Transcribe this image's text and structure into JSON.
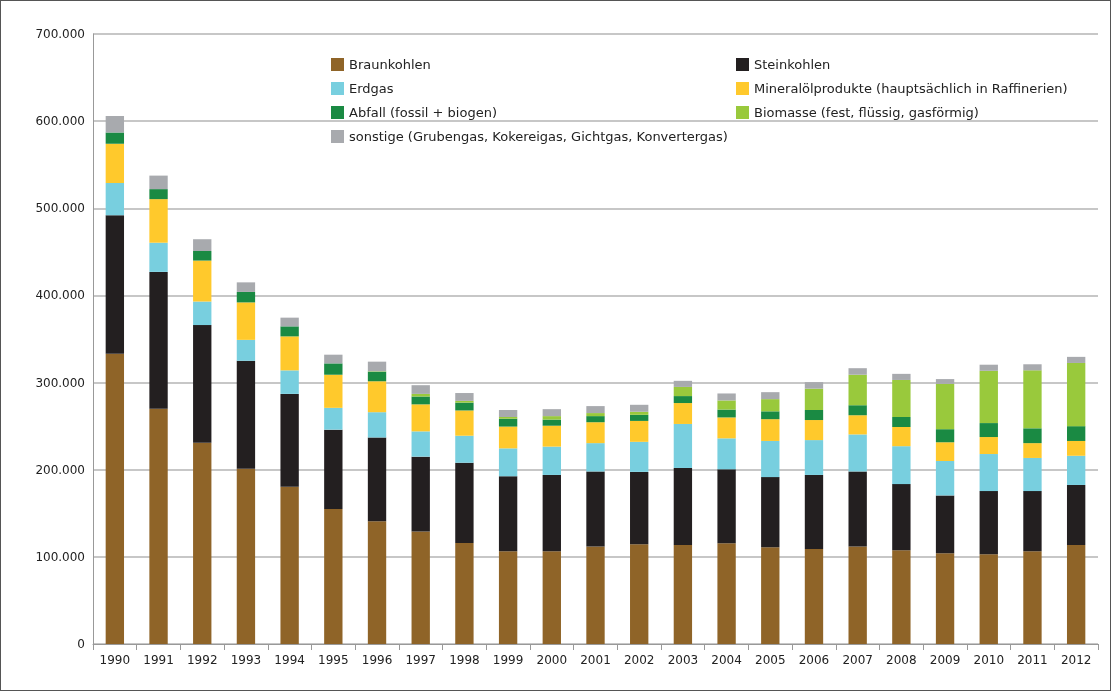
{
  "chart_data": {
    "type": "bar",
    "stacked": true,
    "grid": "y",
    "legend": "top",
    "categories": [
      "1990",
      "1991",
      "1992",
      "1993",
      "1994",
      "1995",
      "1996",
      "1997",
      "1998",
      "1999",
      "2000",
      "2001",
      "2002",
      "2003",
      "2004",
      "2005",
      "2006",
      "2007",
      "2008",
      "2009",
      "2010",
      "2011",
      "2012"
    ],
    "ylim": [
      0,
      700000
    ],
    "yticks": [
      {
        "value": 0,
        "label": "0"
      },
      {
        "value": 100000,
        "label": "100.000"
      },
      {
        "value": 200000,
        "label": "200.000"
      },
      {
        "value": 300000,
        "label": "300.000"
      },
      {
        "value": 400000,
        "label": "400.000"
      },
      {
        "value": 500000,
        "label": "500.000"
      },
      {
        "value": 600000,
        "label": "600.000"
      },
      {
        "value": 700000,
        "label": "700.000"
      }
    ],
    "series": [
      {
        "name": "Braunkohlen",
        "color": "#8f6428",
        "values": [
          333000,
          270000,
          231000,
          201000,
          180500,
          155000,
          141000,
          129000,
          116000,
          106500,
          106500,
          112000,
          114500,
          113500,
          115500,
          111000,
          109000,
          112000,
          107500,
          104000,
          103000,
          106500,
          113500
        ]
      },
      {
        "name": "Steinkohlen",
        "color": "#231f20",
        "values": [
          159000,
          157000,
          135000,
          124000,
          106500,
          91000,
          96000,
          86000,
          92000,
          86000,
          87500,
          86000,
          83000,
          88500,
          85000,
          80500,
          85000,
          86000,
          76000,
          66500,
          72500,
          69000,
          69000
        ]
      },
      {
        "name": "Erdgas",
        "color": "#78cfdf",
        "values": [
          37000,
          33500,
          27000,
          24000,
          27000,
          25000,
          29000,
          29000,
          31000,
          32000,
          32500,
          32500,
          34500,
          50500,
          35500,
          41500,
          40000,
          42500,
          43500,
          39500,
          42500,
          38000,
          33500
        ]
      },
      {
        "name": "Mineralölprodukte (hauptsächlich in Raffinerien)",
        "color": "#ffc92c",
        "values": [
          45000,
          50000,
          47000,
          43000,
          39000,
          38000,
          35500,
          31000,
          29000,
          25000,
          24000,
          24000,
          24000,
          24000,
          24000,
          25000,
          23000,
          22000,
          22000,
          21500,
          19500,
          17000,
          17000
        ]
      },
      {
        "name": "Abfall (fossil + biogen)",
        "color": "#1a8a43",
        "values": [
          13000,
          11500,
          11000,
          12000,
          11500,
          13000,
          11000,
          9000,
          9000,
          9000,
          7000,
          7000,
          7000,
          8000,
          9000,
          9000,
          11500,
          11500,
          11500,
          15000,
          16000,
          17000,
          17000
        ]
      },
      {
        "name": "Biomasse (fest, flüssig, gasförmig)",
        "color": "#99c93c",
        "values": [
          0,
          0,
          0,
          0,
          0,
          null,
          500,
          3000,
          2000,
          2000,
          4000,
          3500,
          3500,
          10500,
          10500,
          14000,
          24500,
          35000,
          42500,
          52000,
          60000,
          66500,
          72500
        ]
      },
      {
        "name": "sonstige (Grubengas, Kokereigas, Gichtgas, Konvertergas)",
        "color": "#a8aaae",
        "values": [
          19000,
          15500,
          13500,
          11000,
          10000,
          10000,
          11000,
          10000,
          9000,
          8000,
          8000,
          8000,
          8000,
          7000,
          8000,
          8000,
          7500,
          7500,
          7000,
          5500,
          7000,
          7000,
          7000
        ]
      }
    ]
  }
}
